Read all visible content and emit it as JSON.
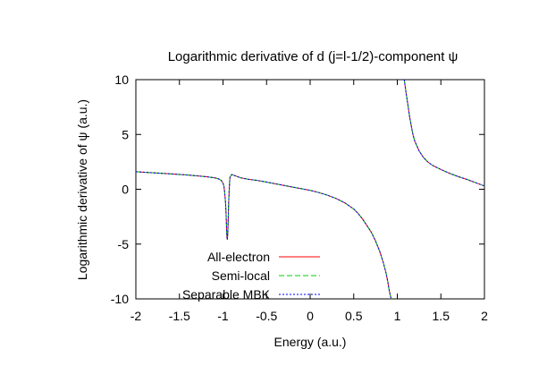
{
  "chart_data": {
    "type": "line",
    "title": "Logarithmic derivative of d (j=l-1/2)-component ψ",
    "xlabel": "Energy (a.u.)",
    "ylabel": "Logarithmic derivative of ψ (a.u.)",
    "xlim": [
      -2,
      2
    ],
    "ylim": [
      -10,
      10
    ],
    "xticks": [
      -2,
      -1.5,
      -1,
      -0.5,
      0,
      0.5,
      1,
      1.5,
      2
    ],
    "xtick_labels": [
      "-2",
      "-1.5",
      "-1",
      "-0.5",
      "0",
      "0.5",
      "1",
      "1.5",
      "2"
    ],
    "yticks": [
      -10,
      -5,
      0,
      5,
      10
    ],
    "ytick_labels": [
      "-10",
      "-5",
      "0",
      "5",
      "10"
    ],
    "grid": false,
    "legend_position": "bottom-left",
    "series": [
      {
        "name": "All-electron",
        "color": "#ff0000",
        "dash": "solid"
      },
      {
        "name": "Semi-local",
        "color": "#00cc00",
        "dash": "dash"
      },
      {
        "name": "Separable MBK",
        "color": "#0000ff",
        "dash": "dot"
      }
    ],
    "curves": [
      {
        "x": [
          -2.0,
          -1.8,
          -1.6,
          -1.4,
          -1.2,
          -1.1,
          -1.05,
          -1.02,
          -1.0,
          -0.99,
          -0.98,
          -0.97,
          -0.965,
          -0.96,
          -0.955,
          -0.95,
          -0.945,
          -0.94,
          -0.935,
          -0.93,
          -0.925,
          -0.92,
          -0.9,
          -0.85,
          -0.8,
          -0.7,
          -0.6,
          -0.5,
          -0.4,
          -0.3,
          -0.2,
          -0.1,
          0.0,
          0.1,
          0.2,
          0.3,
          0.4,
          0.5,
          0.55,
          0.6,
          0.65,
          0.7,
          0.75,
          0.8,
          0.84,
          0.87,
          0.89,
          0.905,
          0.915,
          0.925,
          0.935
        ],
        "y": [
          1.6,
          1.5,
          1.4,
          1.3,
          1.15,
          1.05,
          0.95,
          0.8,
          0.55,
          0.3,
          -0.3,
          -1.3,
          -2.2,
          -3.3,
          -4.4,
          -4.6,
          -3.9,
          -2.6,
          -1.3,
          -0.3,
          0.5,
          1.1,
          1.35,
          1.2,
          1.05,
          0.9,
          0.8,
          0.65,
          0.5,
          0.35,
          0.2,
          0.05,
          -0.1,
          -0.3,
          -0.55,
          -0.85,
          -1.25,
          -1.8,
          -2.2,
          -2.7,
          -3.3,
          -3.9,
          -4.7,
          -5.7,
          -6.7,
          -7.6,
          -8.4,
          -9.1,
          -9.5,
          -9.85,
          -10.0
        ]
      },
      {
        "x": [
          1.08,
          1.1,
          1.12,
          1.14,
          1.16,
          1.18,
          1.2,
          1.25,
          1.3,
          1.35,
          1.4,
          1.5,
          1.6,
          1.7,
          1.8,
          1.9,
          2.0
        ],
        "y": [
          10.0,
          8.8,
          7.8,
          6.7,
          5.8,
          5.0,
          4.4,
          3.5,
          2.9,
          2.5,
          2.2,
          1.8,
          1.45,
          1.15,
          0.9,
          0.6,
          0.3
        ]
      }
    ]
  }
}
